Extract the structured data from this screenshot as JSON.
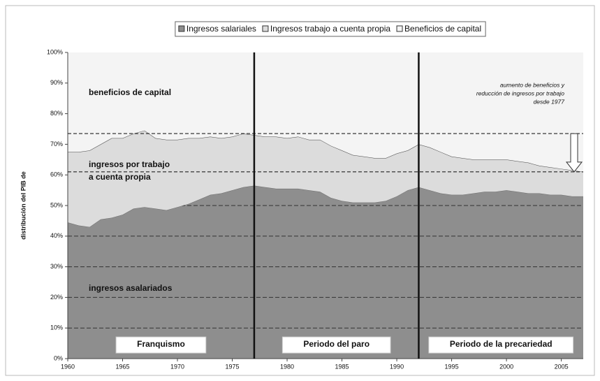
{
  "chart_data": {
    "type": "stacked_area",
    "y_label": "distribución del PIB de",
    "x": [
      1960,
      1961,
      1962,
      1963,
      1964,
      1965,
      1966,
      1967,
      1968,
      1969,
      1970,
      1971,
      1972,
      1973,
      1974,
      1975,
      1976,
      1977,
      1978,
      1979,
      1980,
      1981,
      1982,
      1983,
      1984,
      1985,
      1986,
      1987,
      1988,
      1989,
      1990,
      1991,
      1992,
      1993,
      1994,
      1995,
      1996,
      1997,
      1998,
      1999,
      2000,
      2001,
      2002,
      2003,
      2004,
      2005,
      2006,
      2007
    ],
    "series": [
      {
        "name": "Ingresos salariales",
        "color": "#8e8e8e",
        "area_label": "ingresos asalariados",
        "values": [
          44.5,
          43.5,
          43,
          45.5,
          46,
          47,
          49,
          49.5,
          49,
          48.5,
          49.5,
          50.5,
          52,
          53.5,
          54,
          55,
          56,
          56.5,
          56,
          55.5,
          55.5,
          55.5,
          55,
          54.5,
          52.5,
          51.5,
          51,
          51,
          51,
          51.5,
          53,
          55,
          56,
          55,
          54,
          53.5,
          53.5,
          54,
          54.5,
          54.5,
          55,
          54.5,
          54,
          54,
          53.5,
          53.5,
          53,
          53
        ]
      },
      {
        "name": "Ingresos trabajo a cuenta propia",
        "color": "#dcdcdc",
        "area_label": [
          "ingresos por trabajo",
          "a cuenta propia"
        ],
        "values": [
          23,
          24,
          25,
          24.5,
          26,
          25,
          24.5,
          25,
          23,
          23,
          22,
          21.5,
          20,
          19,
          18,
          17.5,
          17.5,
          16.5,
          16.5,
          17,
          16.5,
          17,
          16.5,
          17,
          17,
          16.5,
          15.5,
          15,
          14.5,
          14,
          14,
          13,
          14,
          14,
          13.5,
          12.5,
          12,
          11,
          10.5,
          10.5,
          10,
          10,
          10,
          9,
          9,
          8.5,
          8.5,
          8
        ]
      },
      {
        "name": "Beneficios de capital",
        "color": "#f4f4f4",
        "area_label": "beneficios de capital",
        "values": [
          32.5,
          32.5,
          32,
          30,
          28,
          28,
          26.5,
          25.5,
          28,
          28.5,
          28.5,
          28,
          28,
          27.5,
          28,
          27.5,
          26.5,
          27,
          27.5,
          27.5,
          28,
          27.5,
          28.5,
          28.5,
          30.5,
          32,
          33.5,
          34,
          34.5,
          34.5,
          33,
          32,
          30,
          31,
          32.5,
          34,
          34.5,
          35,
          35,
          35,
          35,
          35.5,
          36,
          37,
          37.5,
          38,
          38.5,
          39
        ]
      }
    ],
    "xlim": [
      1960,
      2007
    ],
    "xticks": [
      1960,
      1965,
      1970,
      1975,
      1980,
      1985,
      1990,
      1995,
      2000,
      2005
    ],
    "ylim": [
      0,
      100
    ],
    "yticks": [
      {
        "value": 0,
        "label": "0%"
      },
      {
        "value": 10,
        "label": "10%"
      },
      {
        "value": 20,
        "label": "20%"
      },
      {
        "value": 30,
        "label": "30%"
      },
      {
        "value": 40,
        "label": "40%"
      },
      {
        "value": 50,
        "label": "50%"
      },
      {
        "value": 60,
        "label": "60%"
      },
      {
        "value": 70,
        "label": "70%"
      },
      {
        "value": 80,
        "label": "80%"
      },
      {
        "value": 90,
        "label": "90%"
      },
      {
        "value": 100,
        "label": "100%"
      }
    ],
    "grid": true,
    "legend": "top",
    "reference_lines": [
      73.5,
      61
    ],
    "periods": [
      {
        "label": "Franquismo",
        "start": 1960
      },
      {
        "label": "Periodo del paro",
        "start": 1977
      },
      {
        "label": "Periodo de la precariedad",
        "start": 1992
      }
    ],
    "annotation": [
      "aumento de beneficios y",
      "reducción de ingresos por trabajo",
      "desde 1977"
    ]
  }
}
